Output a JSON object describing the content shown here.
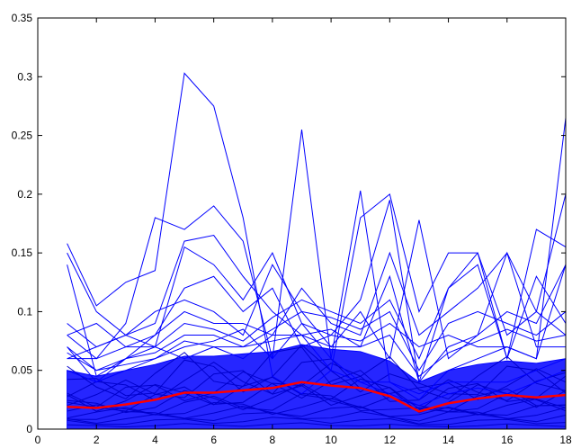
{
  "chart_data": {
    "type": "line",
    "title": "",
    "xlabel": "",
    "ylabel": "",
    "xlim": [
      0,
      18
    ],
    "ylim": [
      0,
      0.35
    ],
    "x_ticks": [
      0,
      2,
      4,
      6,
      8,
      10,
      12,
      14,
      16,
      18
    ],
    "x_tick_labels": [
      "0",
      "2",
      "4",
      "6",
      "8",
      "10",
      "12",
      "14",
      "16",
      "18"
    ],
    "y_ticks": [
      0,
      0.05,
      0.1,
      0.15,
      0.2,
      0.25,
      0.3,
      0.35
    ],
    "y_tick_labels": [
      "0",
      "0.05",
      "0.1",
      "0.15",
      "0.2",
      "0.25",
      "0.3",
      "0.35"
    ],
    "grid": false,
    "legend": "none",
    "x": [
      1,
      2,
      3,
      4,
      5,
      6,
      7,
      8,
      9,
      10,
      11,
      12,
      13,
      14,
      15,
      16,
      17,
      18
    ],
    "colors": {
      "series": "#0000ff",
      "mean": "#ff0000",
      "axis": "#000000",
      "background": "#ffffff"
    },
    "series_note_count": 400,
    "band": {
      "low": [
        0.0,
        0.0,
        0.0,
        0.0,
        0.0,
        0.0,
        0.0,
        0.0,
        0.0,
        0.0,
        0.0,
        0.0,
        0.0,
        0.0,
        0.0,
        0.0,
        0.0,
        0.0
      ],
      "high": [
        0.05,
        0.045,
        0.05,
        0.055,
        0.062,
        0.062,
        0.064,
        0.066,
        0.072,
        0.068,
        0.066,
        0.058,
        0.04,
        0.05,
        0.055,
        0.058,
        0.056,
        0.06
      ]
    },
    "series": [
      {
        "values": [
          0.158,
          0.105,
          0.125,
          0.135,
          0.303,
          0.275,
          0.18,
          0.045,
          0.03,
          0.05,
          0.04,
          0.03,
          0.02,
          0.03,
          0.035,
          0.03,
          0.04,
          0.05
        ]
      },
      {
        "values": [
          0.08,
          0.06,
          0.09,
          0.18,
          0.17,
          0.19,
          0.16,
          0.06,
          0.255,
          0.06,
          0.04,
          0.04,
          0.03,
          0.04,
          0.04,
          0.04,
          0.05,
          0.06
        ]
      },
      {
        "values": [
          0.14,
          0.045,
          0.06,
          0.07,
          0.155,
          0.14,
          0.11,
          0.15,
          0.09,
          0.06,
          0.203,
          0.04,
          0.025,
          0.05,
          0.06,
          0.07,
          0.06,
          0.265
        ]
      },
      {
        "values": [
          0.09,
          0.07,
          0.08,
          0.09,
          0.16,
          0.165,
          0.13,
          0.1,
          0.08,
          0.05,
          0.18,
          0.2,
          0.1,
          0.15,
          0.15,
          0.08,
          0.1,
          0.2
        ]
      },
      {
        "values": [
          0.07,
          0.05,
          0.06,
          0.08,
          0.12,
          0.13,
          0.1,
          0.12,
          0.07,
          0.08,
          0.11,
          0.195,
          0.04,
          0.12,
          0.15,
          0.06,
          0.17,
          0.155
        ]
      },
      {
        "values": [
          0.06,
          0.07,
          0.08,
          0.1,
          0.11,
          0.1,
          0.08,
          0.14,
          0.1,
          0.07,
          0.1,
          0.06,
          0.178,
          0.06,
          0.08,
          0.1,
          0.09,
          0.14
        ]
      },
      {
        "values": [
          0.08,
          0.09,
          0.07,
          0.08,
          0.1,
          0.09,
          0.09,
          0.08,
          0.12,
          0.09,
          0.08,
          0.15,
          0.08,
          0.1,
          0.12,
          0.15,
          0.1,
          0.08
        ]
      },
      {
        "values": [
          0.06,
          0.06,
          0.07,
          0.07,
          0.09,
          0.085,
          0.075,
          0.095,
          0.11,
          0.1,
          0.09,
          0.11,
          0.06,
          0.12,
          0.14,
          0.06,
          0.13,
          0.09
        ]
      },
      {
        "values": [
          0.05,
          0.04,
          0.06,
          0.065,
          0.08,
          0.08,
          0.07,
          0.085,
          0.1,
          0.095,
          0.085,
          0.1,
          0.05,
          0.09,
          0.1,
          0.09,
          0.08,
          0.1
        ]
      },
      {
        "values": [
          0.15,
          0.1,
          0.08,
          0.07,
          0.06,
          0.07,
          0.06,
          0.08,
          0.08,
          0.07,
          0.07,
          0.13,
          0.04,
          0.07,
          0.08,
          0.15,
          0.07,
          0.07
        ]
      },
      {
        "values": [
          0.07,
          0.04,
          0.05,
          0.06,
          0.07,
          0.075,
          0.085,
          0.06,
          0.09,
          0.08,
          0.075,
          0.09,
          0.07,
          0.08,
          0.07,
          0.07,
          0.06,
          0.14
        ]
      },
      {
        "values": [
          0.065,
          0.05,
          0.055,
          0.06,
          0.075,
          0.07,
          0.07,
          0.075,
          0.08,
          0.085,
          0.07,
          0.08,
          0.045,
          0.065,
          0.075,
          0.085,
          0.075,
          0.08
        ]
      }
    ],
    "mean": {
      "color": "#ff0000",
      "values": [
        0.019,
        0.018,
        0.021,
        0.025,
        0.031,
        0.031,
        0.033,
        0.035,
        0.04,
        0.037,
        0.035,
        0.028,
        0.015,
        0.022,
        0.026,
        0.029,
        0.027,
        0.029
      ]
    }
  }
}
